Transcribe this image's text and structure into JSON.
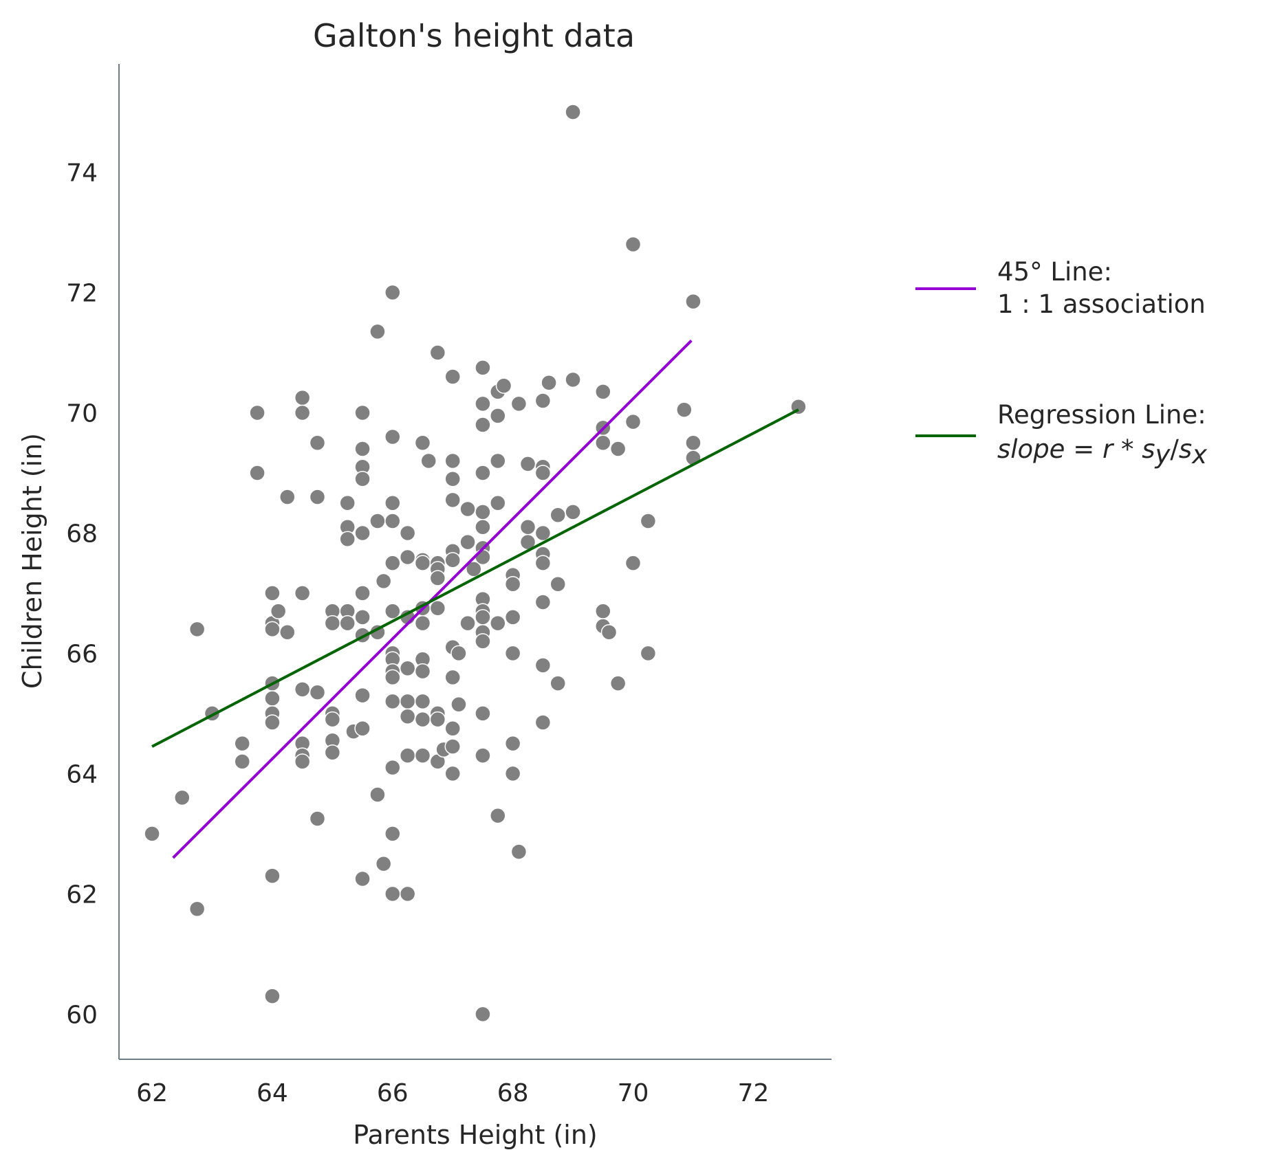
{
  "chart_data": {
    "type": "scatter",
    "title": "Galton's height data",
    "xlabel": "Parents Height (in)",
    "ylabel": "Children Height (in)",
    "xlim": [
      61.45,
      73.3
    ],
    "ylim": [
      59.25,
      75.8
    ],
    "xticks": [
      62,
      64,
      66,
      68,
      70,
      72
    ],
    "yticks": [
      60,
      62,
      64,
      66,
      68,
      70,
      72,
      74
    ],
    "grid": false,
    "legend_position": "right",
    "colors": {
      "points": "#808080",
      "point_edge": "#ffffff",
      "line_45": "#9400d3",
      "regression": "#006400",
      "spine": "#6e7b8b",
      "text": "#262626"
    },
    "points": [
      [
        62.0,
        63.0
      ],
      [
        62.5,
        63.6
      ],
      [
        62.75,
        61.75
      ],
      [
        62.75,
        66.4
      ],
      [
        63.0,
        65.0
      ],
      [
        63.5,
        64.5
      ],
      [
        63.5,
        64.2
      ],
      [
        63.75,
        70.0
      ],
      [
        63.75,
        69.0
      ],
      [
        64.0,
        67.0
      ],
      [
        64.0,
        66.5
      ],
      [
        64.0,
        66.4
      ],
      [
        64.0,
        65.5
      ],
      [
        64.0,
        65.25
      ],
      [
        64.0,
        65.0
      ],
      [
        64.0,
        64.85
      ],
      [
        64.0,
        62.3
      ],
      [
        64.0,
        60.3
      ],
      [
        64.1,
        66.7
      ],
      [
        64.25,
        68.6
      ],
      [
        64.25,
        66.35
      ],
      [
        64.5,
        70.25
      ],
      [
        64.5,
        70.0
      ],
      [
        64.5,
        67.0
      ],
      [
        64.5,
        65.4
      ],
      [
        64.5,
        64.5
      ],
      [
        64.5,
        64.3
      ],
      [
        64.5,
        64.2
      ],
      [
        64.75,
        69.5
      ],
      [
        64.75,
        68.6
      ],
      [
        64.75,
        65.35
      ],
      [
        64.75,
        63.25
      ],
      [
        65.0,
        66.7
      ],
      [
        65.0,
        66.5
      ],
      [
        65.0,
        65.0
      ],
      [
        65.0,
        64.9
      ],
      [
        65.0,
        64.55
      ],
      [
        65.0,
        64.35
      ],
      [
        65.25,
        68.5
      ],
      [
        65.25,
        68.1
      ],
      [
        65.25,
        67.9
      ],
      [
        65.25,
        66.7
      ],
      [
        65.25,
        66.5
      ],
      [
        65.35,
        64.7
      ],
      [
        65.5,
        70.0
      ],
      [
        65.5,
        69.4
      ],
      [
        65.5,
        69.1
      ],
      [
        65.5,
        68.9
      ],
      [
        65.5,
        68.0
      ],
      [
        65.5,
        67.0
      ],
      [
        65.5,
        66.6
      ],
      [
        65.5,
        66.3
      ],
      [
        65.5,
        65.3
      ],
      [
        65.5,
        64.75
      ],
      [
        65.5,
        62.25
      ],
      [
        65.75,
        71.35
      ],
      [
        65.75,
        68.2
      ],
      [
        65.75,
        66.35
      ],
      [
        65.75,
        63.65
      ],
      [
        65.85,
        67.2
      ],
      [
        65.85,
        62.5
      ],
      [
        66.0,
        72.0
      ],
      [
        66.0,
        69.6
      ],
      [
        66.0,
        68.5
      ],
      [
        66.0,
        68.2
      ],
      [
        66.0,
        67.5
      ],
      [
        66.0,
        66.7
      ],
      [
        66.0,
        66.0
      ],
      [
        66.0,
        65.9
      ],
      [
        66.0,
        65.7
      ],
      [
        66.0,
        65.6
      ],
      [
        66.0,
        65.2
      ],
      [
        66.0,
        64.1
      ],
      [
        66.0,
        63.0
      ],
      [
        66.0,
        62.0
      ],
      [
        66.25,
        68.0
      ],
      [
        66.25,
        67.6
      ],
      [
        66.25,
        66.6
      ],
      [
        66.25,
        65.75
      ],
      [
        66.25,
        65.2
      ],
      [
        66.25,
        64.95
      ],
      [
        66.25,
        64.3
      ],
      [
        66.25,
        62.0
      ],
      [
        66.5,
        69.5
      ],
      [
        66.5,
        67.55
      ],
      [
        66.5,
        67.5
      ],
      [
        66.5,
        66.75
      ],
      [
        66.5,
        66.5
      ],
      [
        66.5,
        65.9
      ],
      [
        66.5,
        65.7
      ],
      [
        66.5,
        65.2
      ],
      [
        66.5,
        64.9
      ],
      [
        66.5,
        64.3
      ],
      [
        66.6,
        69.2
      ],
      [
        66.75,
        71.0
      ],
      [
        66.75,
        67.5
      ],
      [
        66.75,
        67.4
      ],
      [
        66.75,
        67.25
      ],
      [
        66.75,
        66.75
      ],
      [
        66.75,
        65.0
      ],
      [
        66.75,
        64.9
      ],
      [
        66.75,
        64.2
      ],
      [
        66.85,
        64.4
      ],
      [
        67.0,
        70.6
      ],
      [
        67.0,
        69.2
      ],
      [
        67.0,
        68.9
      ],
      [
        67.0,
        68.55
      ],
      [
        67.0,
        67.7
      ],
      [
        67.0,
        67.55
      ],
      [
        67.0,
        66.1
      ],
      [
        67.0,
        65.6
      ],
      [
        67.0,
        64.75
      ],
      [
        67.0,
        64.45
      ],
      [
        67.0,
        64.0
      ],
      [
        67.1,
        66.0
      ],
      [
        67.1,
        65.15
      ],
      [
        67.25,
        68.4
      ],
      [
        67.25,
        67.85
      ],
      [
        67.25,
        66.5
      ],
      [
        67.35,
        67.4
      ],
      [
        67.5,
        70.75
      ],
      [
        67.5,
        70.15
      ],
      [
        67.5,
        69.8
      ],
      [
        67.5,
        69.0
      ],
      [
        67.5,
        68.35
      ],
      [
        67.5,
        68.1
      ],
      [
        67.5,
        67.75
      ],
      [
        67.5,
        67.6
      ],
      [
        67.5,
        66.9
      ],
      [
        67.5,
        66.7
      ],
      [
        67.5,
        66.6
      ],
      [
        67.5,
        66.35
      ],
      [
        67.5,
        66.2
      ],
      [
        67.5,
        65.0
      ],
      [
        67.5,
        64.3
      ],
      [
        67.5,
        60.0
      ],
      [
        67.75,
        70.35
      ],
      [
        67.75,
        69.95
      ],
      [
        67.75,
        69.2
      ],
      [
        67.75,
        68.5
      ],
      [
        67.75,
        66.5
      ],
      [
        67.75,
        63.3
      ],
      [
        67.85,
        70.45
      ],
      [
        68.0,
        67.3
      ],
      [
        68.0,
        67.15
      ],
      [
        68.0,
        66.6
      ],
      [
        68.0,
        66.0
      ],
      [
        68.0,
        64.5
      ],
      [
        68.0,
        64.0
      ],
      [
        68.1,
        70.15
      ],
      [
        68.1,
        62.7
      ],
      [
        68.25,
        69.15
      ],
      [
        68.25,
        68.1
      ],
      [
        68.25,
        67.85
      ],
      [
        68.5,
        70.2
      ],
      [
        68.5,
        69.1
      ],
      [
        68.5,
        69.0
      ],
      [
        68.5,
        68.0
      ],
      [
        68.5,
        67.65
      ],
      [
        68.5,
        67.5
      ],
      [
        68.5,
        66.85
      ],
      [
        68.5,
        65.8
      ],
      [
        68.5,
        64.85
      ],
      [
        68.6,
        70.5
      ],
      [
        68.75,
        68.3
      ],
      [
        68.75,
        67.15
      ],
      [
        68.75,
        65.5
      ],
      [
        69.0,
        75.0
      ],
      [
        69.0,
        70.55
      ],
      [
        69.0,
        68.35
      ],
      [
        69.5,
        70.35
      ],
      [
        69.5,
        69.75
      ],
      [
        69.5,
        69.5
      ],
      [
        69.5,
        66.7
      ],
      [
        69.5,
        66.45
      ],
      [
        69.6,
        66.35
      ],
      [
        69.75,
        69.4
      ],
      [
        69.75,
        65.5
      ],
      [
        70.0,
        72.8
      ],
      [
        70.0,
        69.85
      ],
      [
        70.0,
        67.5
      ],
      [
        70.25,
        68.2
      ],
      [
        70.25,
        66.0
      ],
      [
        70.85,
        70.05
      ],
      [
        71.0,
        71.85
      ],
      [
        71.0,
        69.5
      ],
      [
        71.0,
        69.25
      ],
      [
        72.75,
        70.1
      ]
    ],
    "series": [
      {
        "name": "45° Line:\n1:1 association",
        "line": [
          [
            62.35,
            62.6
          ],
          [
            70.97,
            71.2
          ]
        ]
      },
      {
        "name": "Regression Line:",
        "line": [
          [
            62.0,
            64.45
          ],
          [
            72.75,
            70.05
          ]
        ]
      }
    ]
  },
  "legend": {
    "line45_label_1": "45° Line:",
    "line45_label_2": "1 : 1 association",
    "regression_label_1": "Regression Line:",
    "regression_formula": "slope = r * s_y / s_x"
  }
}
